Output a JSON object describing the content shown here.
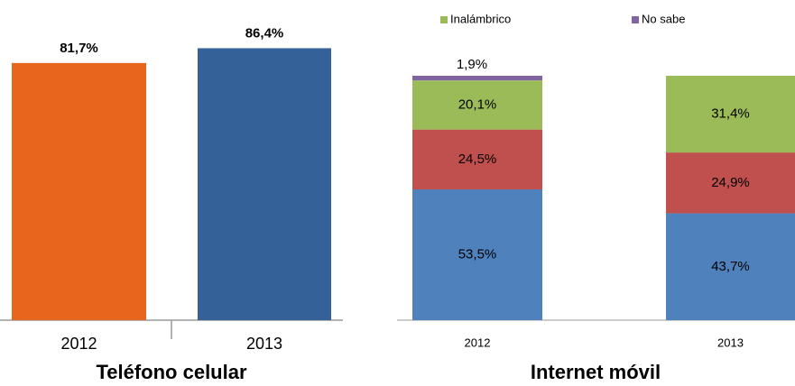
{
  "chart_data": [
    {
      "type": "bar",
      "title": "Teléfono celular",
      "categories": [
        "2012",
        "2013"
      ],
      "values": [
        81.7,
        86.4
      ],
      "value_labels": [
        "81,7%",
        "86,4%"
      ],
      "colors": [
        "#e8651e",
        "#356199"
      ],
      "ylim": [
        0,
        100
      ]
    },
    {
      "type": "stacked_bar",
      "title": "Internet móvil",
      "categories": [
        "2012",
        "2013"
      ],
      "series": [
        {
          "color": "#4f81bd",
          "values": [
            53.5,
            43.7
          ],
          "value_labels": [
            "53,5%",
            "43,7%"
          ]
        },
        {
          "color": "#c0504d",
          "values": [
            24.5,
            24.9
          ],
          "value_labels": [
            "24,5%",
            "24,9%"
          ]
        },
        {
          "name": "Inalámbrico",
          "color": "#9bbb59",
          "values": [
            20.1,
            31.4
          ],
          "value_labels": [
            "20,1%",
            "31,4%"
          ]
        },
        {
          "name": "No sabe",
          "color": "#8064a2",
          "values": [
            1.9,
            null
          ],
          "value_labels": [
            "1,9%",
            null
          ]
        }
      ],
      "ylim": [
        0,
        100
      ]
    }
  ]
}
